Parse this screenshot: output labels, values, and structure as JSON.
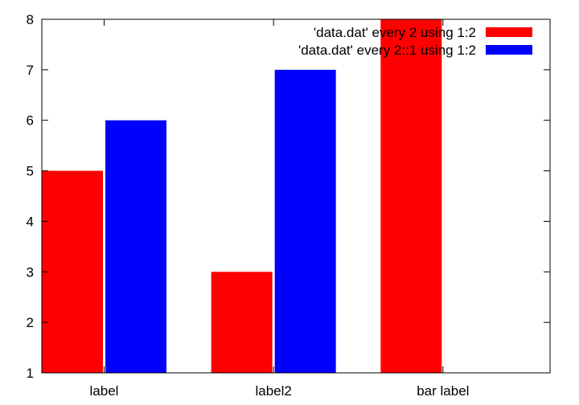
{
  "chart_data": {
    "type": "bar",
    "categories": [
      "label",
      "label2",
      "bar label"
    ],
    "series": [
      {
        "name": "'data.dat' every 2    using 1:2",
        "values": [
          5,
          3,
          8
        ],
        "color": "#ff0000"
      },
      {
        "name": "'data.dat' every 2::1 using 1:2",
        "values": [
          6,
          7,
          null
        ],
        "color": "#0000ff"
      }
    ],
    "ylim": [
      1,
      8
    ],
    "yticks": [
      "1",
      "2",
      "3",
      "4",
      "5",
      "6",
      "7",
      "8"
    ],
    "grid": false,
    "legend_position": "top-right"
  }
}
